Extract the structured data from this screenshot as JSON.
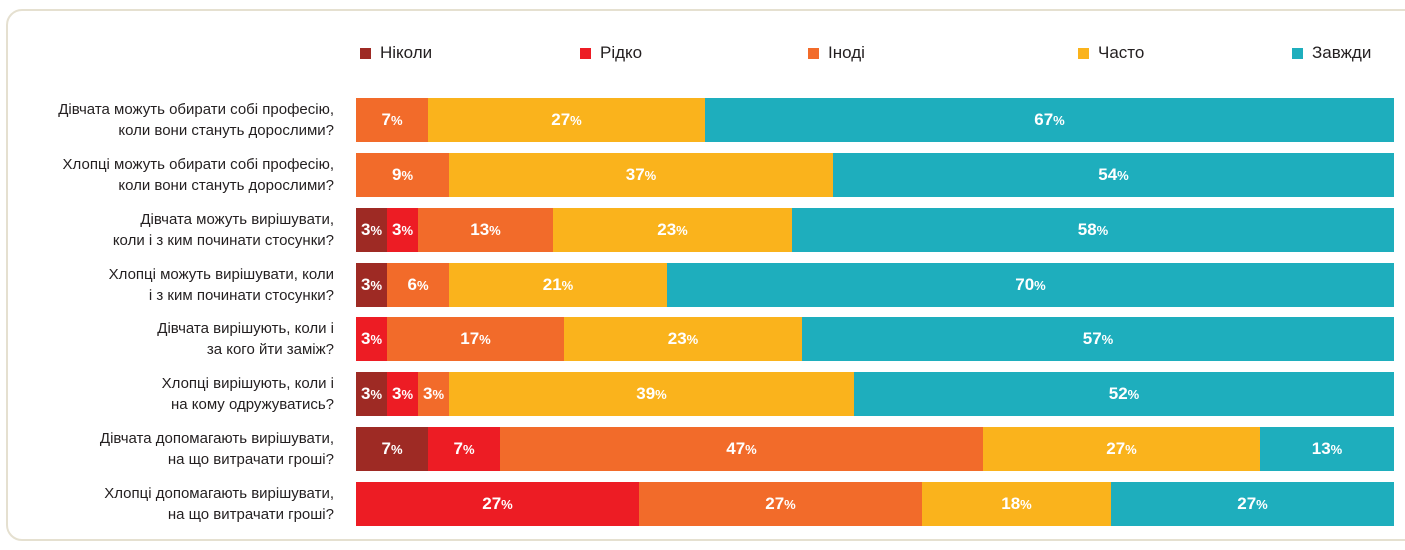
{
  "chart_data": {
    "type": "bar",
    "orientation": "horizontal",
    "stacked": true,
    "value_format": "percent",
    "legend": [
      {
        "name": "Ніколи",
        "color": "#9e2a24"
      },
      {
        "name": "Рідко",
        "color": "#ed1c24"
      },
      {
        "name": "Іноді",
        "color": "#f26b2a"
      },
      {
        "name": "Часто",
        "color": "#fab31c"
      },
      {
        "name": "Завжди",
        "color": "#1eaebd"
      }
    ],
    "categories": [
      [
        "Дівчата можуть обирати собі професію,",
        "коли вони стануть дорослими?"
      ],
      [
        "Хлопці можуть обирати собі професію,",
        "коли вони стануть дорослими?"
      ],
      [
        "Дівчата можуть вирішувати,",
        "коли і з ким починати стосунки?"
      ],
      [
        "Хлопці можуть вирішувати, коли",
        "і з ким починати стосунки?"
      ],
      [
        "Дівчата вирішують, коли і",
        "за кого йти заміж?"
      ],
      [
        "Хлопці вирішують, коли і",
        "на кому одружуватись?"
      ],
      [
        "Дівчата допомагають вирішувати,",
        "на що витрачати гроші?"
      ],
      [
        "Хлопці допомагають вирішувати,",
        "на що витрачати гроші?"
      ]
    ],
    "series": [
      {
        "name": "Ніколи",
        "values": [
          0,
          0,
          3,
          3,
          0,
          3,
          7,
          0
        ]
      },
      {
        "name": "Рідко",
        "values": [
          0,
          0,
          3,
          0,
          3,
          3,
          7,
          27
        ]
      },
      {
        "name": "Іноді",
        "values": [
          7,
          9,
          13,
          6,
          17,
          3,
          47,
          27
        ]
      },
      {
        "name": "Часто",
        "values": [
          27,
          37,
          23,
          21,
          23,
          39,
          27,
          18
        ]
      },
      {
        "name": "Завжди",
        "values": [
          67,
          54,
          58,
          70,
          57,
          52,
          13,
          27
        ]
      }
    ]
  }
}
